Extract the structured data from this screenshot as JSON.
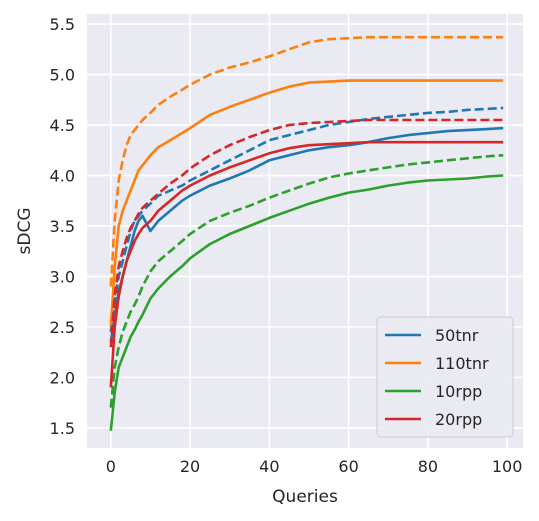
{
  "chart_data": {
    "type": "line",
    "title": "",
    "xlabel": "Queries",
    "ylabel": "sDCG",
    "xlim": [
      -6,
      104
    ],
    "ylim": [
      1.3,
      5.6
    ],
    "xticks": [
      0,
      20,
      40,
      60,
      80,
      100
    ],
    "yticks": [
      1.5,
      2.0,
      2.5,
      3.0,
      3.5,
      4.0,
      4.5,
      5.0,
      5.5
    ],
    "xtick_labels": [
      "0",
      "20",
      "40",
      "60",
      "80",
      "100"
    ],
    "ytick_labels": [
      "1.5",
      "2.0",
      "2.5",
      "3.0",
      "3.5",
      "4.0",
      "4.5",
      "5.0",
      "5.5"
    ],
    "grid": true,
    "background": "#eaeaf2",
    "legend_position": "lower-right",
    "legend": [
      {
        "label": "50tnr",
        "color": "#1f77b4"
      },
      {
        "label": "110tnr",
        "color": "#ff7f0e"
      },
      {
        "label": "10rpp",
        "color": "#2ca02c"
      },
      {
        "label": "20rpp",
        "color": "#d62728"
      }
    ],
    "series": [
      {
        "name": "50tnr",
        "style": "solid",
        "color": "#1f77b4",
        "x": [
          0,
          1,
          2,
          3,
          4,
          5,
          6,
          7,
          8,
          10,
          12,
          15,
          18,
          20,
          25,
          30,
          35,
          40,
          45,
          50,
          55,
          60,
          65,
          70,
          75,
          80,
          85,
          90,
          95,
          99
        ],
        "y": [
          2.35,
          2.6,
          2.85,
          3.0,
          3.15,
          3.3,
          3.45,
          3.55,
          3.6,
          3.45,
          3.55,
          3.65,
          3.75,
          3.8,
          3.9,
          3.97,
          4.05,
          4.15,
          4.2,
          4.25,
          4.28,
          4.3,
          4.33,
          4.37,
          4.4,
          4.42,
          4.44,
          4.45,
          4.46,
          4.47
        ]
      },
      {
        "name": "50tnr-dashed",
        "style": "dashed",
        "color": "#1f77b4",
        "x": [
          0,
          1,
          2,
          3,
          4,
          5,
          6,
          7,
          8,
          10,
          12,
          15,
          18,
          20,
          25,
          30,
          35,
          40,
          45,
          50,
          55,
          60,
          65,
          70,
          75,
          80,
          85,
          90,
          95,
          99
        ],
        "y": [
          2.45,
          2.75,
          3.0,
          3.15,
          3.3,
          3.45,
          3.55,
          3.6,
          3.65,
          3.72,
          3.8,
          3.85,
          3.9,
          3.95,
          4.05,
          4.15,
          4.25,
          4.35,
          4.4,
          4.45,
          4.5,
          4.53,
          4.56,
          4.58,
          4.6,
          4.62,
          4.63,
          4.65,
          4.66,
          4.67
        ]
      },
      {
        "name": "110tnr",
        "style": "solid",
        "color": "#ff7f0e",
        "x": [
          0,
          1,
          2,
          3,
          4,
          5,
          6,
          7,
          8,
          10,
          12,
          15,
          18,
          20,
          25,
          30,
          35,
          40,
          45,
          50,
          55,
          60,
          65,
          70,
          75,
          80,
          85,
          90,
          95,
          99
        ],
        "y": [
          2.5,
          3.1,
          3.5,
          3.65,
          3.75,
          3.85,
          3.95,
          4.05,
          4.1,
          4.2,
          4.28,
          4.35,
          4.42,
          4.47,
          4.6,
          4.68,
          4.75,
          4.82,
          4.88,
          4.92,
          4.93,
          4.94,
          4.94,
          4.94,
          4.94,
          4.94,
          4.94,
          4.94,
          4.94,
          4.94
        ]
      },
      {
        "name": "110tnr-dashed",
        "style": "dashed",
        "color": "#ff7f0e",
        "x": [
          0,
          1,
          2,
          3,
          4,
          5,
          6,
          7,
          8,
          10,
          12,
          15,
          18,
          20,
          25,
          30,
          35,
          40,
          45,
          50,
          55,
          60,
          65,
          70,
          75,
          80,
          85,
          90,
          95,
          99
        ],
        "y": [
          2.9,
          3.55,
          3.95,
          4.15,
          4.3,
          4.4,
          4.45,
          4.5,
          4.55,
          4.62,
          4.7,
          4.78,
          4.85,
          4.9,
          5.0,
          5.07,
          5.12,
          5.18,
          5.25,
          5.32,
          5.35,
          5.36,
          5.37,
          5.37,
          5.37,
          5.37,
          5.37,
          5.37,
          5.37,
          5.37
        ]
      },
      {
        "name": "10rpp",
        "style": "solid",
        "color": "#2ca02c",
        "x": [
          0,
          1,
          2,
          3,
          4,
          5,
          6,
          7,
          8,
          10,
          12,
          15,
          18,
          20,
          25,
          30,
          35,
          40,
          45,
          50,
          55,
          60,
          65,
          70,
          75,
          80,
          85,
          90,
          95,
          99
        ],
        "y": [
          1.47,
          1.85,
          2.1,
          2.2,
          2.3,
          2.4,
          2.47,
          2.55,
          2.62,
          2.78,
          2.88,
          3.0,
          3.1,
          3.18,
          3.32,
          3.42,
          3.5,
          3.58,
          3.65,
          3.72,
          3.78,
          3.83,
          3.86,
          3.9,
          3.93,
          3.95,
          3.96,
          3.97,
          3.99,
          4.0
        ]
      },
      {
        "name": "10rpp-dashed",
        "style": "dashed",
        "color": "#2ca02c",
        "x": [
          0,
          1,
          2,
          3,
          4,
          5,
          6,
          7,
          8,
          10,
          12,
          15,
          18,
          20,
          25,
          30,
          35,
          40,
          45,
          50,
          55,
          60,
          65,
          70,
          75,
          80,
          85,
          90,
          95,
          99
        ],
        "y": [
          1.7,
          2.1,
          2.3,
          2.45,
          2.55,
          2.65,
          2.72,
          2.8,
          2.9,
          3.05,
          3.15,
          3.25,
          3.35,
          3.42,
          3.55,
          3.63,
          3.7,
          3.78,
          3.85,
          3.92,
          3.98,
          4.02,
          4.05,
          4.08,
          4.11,
          4.13,
          4.15,
          4.17,
          4.19,
          4.2
        ]
      },
      {
        "name": "20rpp",
        "style": "solid",
        "color": "#d62728",
        "x": [
          0,
          1,
          2,
          3,
          4,
          5,
          6,
          7,
          8,
          10,
          12,
          15,
          18,
          20,
          25,
          30,
          35,
          40,
          45,
          50,
          55,
          60,
          65,
          70,
          75,
          80,
          85,
          90,
          95,
          99
        ],
        "y": [
          1.9,
          2.5,
          2.8,
          3.0,
          3.15,
          3.25,
          3.35,
          3.42,
          3.48,
          3.55,
          3.65,
          3.75,
          3.85,
          3.9,
          4.0,
          4.08,
          4.15,
          4.22,
          4.27,
          4.3,
          4.31,
          4.32,
          4.33,
          4.33,
          4.33,
          4.33,
          4.33,
          4.33,
          4.33,
          4.33
        ]
      },
      {
        "name": "20rpp-dashed",
        "style": "dashed",
        "color": "#d62728",
        "x": [
          0,
          1,
          2,
          3,
          4,
          5,
          6,
          7,
          8,
          10,
          12,
          15,
          18,
          20,
          25,
          30,
          35,
          40,
          45,
          50,
          55,
          60,
          65,
          70,
          75,
          80,
          85,
          90,
          95,
          99
        ],
        "y": [
          2.3,
          2.8,
          3.1,
          3.25,
          3.38,
          3.48,
          3.55,
          3.62,
          3.68,
          3.75,
          3.82,
          3.92,
          4.0,
          4.07,
          4.2,
          4.3,
          4.38,
          4.45,
          4.5,
          4.52,
          4.53,
          4.54,
          4.55,
          4.55,
          4.55,
          4.55,
          4.55,
          4.55,
          4.55,
          4.55
        ]
      }
    ]
  }
}
